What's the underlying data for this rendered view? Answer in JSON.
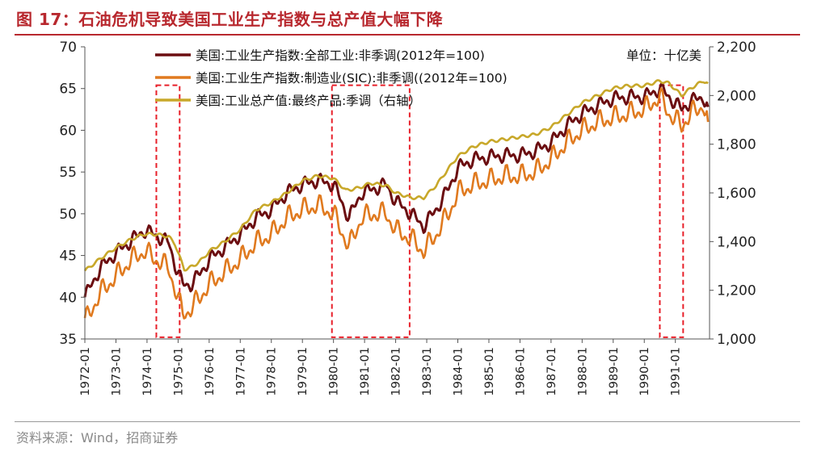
{
  "figure": {
    "title": "图 17：石油危机导致美国工业生产指数与总产值大幅下降",
    "source": "资料来源：Wind，招商证券",
    "title_color": "#b8282e"
  },
  "chart_data": {
    "type": "line",
    "x_tick_labels": [
      "1972-01",
      "1973-01",
      "1974-01",
      "1975-01",
      "1976-01",
      "1977-01",
      "1978-01",
      "1979-01",
      "1980-01",
      "1981-01",
      "1982-01",
      "1983-01",
      "1984-01",
      "1985-01",
      "1986-01",
      "1987-01",
      "1988-01",
      "1989-01",
      "1990-01",
      "1991-01"
    ],
    "x_range": [
      1972.0,
      1992.1
    ],
    "y_left": {
      "ylim": [
        35,
        70
      ],
      "ticks": [
        "35",
        "40",
        "45",
        "50",
        "55",
        "60",
        "65",
        "70"
      ]
    },
    "y_right": {
      "ylim": [
        1000,
        2200
      ],
      "ticks": [
        "1,000",
        "1,200",
        "1,400",
        "1,600",
        "1,800",
        "2,000",
        "2,200"
      ],
      "label": "右轴"
    },
    "grid": false,
    "legend_position": "top-left",
    "unit_note": "单位：十亿美",
    "recession_shading": [
      {
        "start": 1974.3,
        "end": 1975.05
      },
      {
        "start": 1979.95,
        "end": 1982.45
      },
      {
        "start": 1990.5,
        "end": 1991.25
      }
    ],
    "series": [
      {
        "name": "美国:工业生产指数:全部工业:非季调(2012年=100)",
        "axis": "left",
        "color": "#6b0d10",
        "points": [
          [
            1972.0,
            40.0
          ],
          [
            1972.5,
            43.5
          ],
          [
            1973.0,
            45.3
          ],
          [
            1973.5,
            46.8
          ],
          [
            1973.9,
            48.0
          ],
          [
            1974.3,
            47.4
          ],
          [
            1974.7,
            46.5
          ],
          [
            1974.9,
            44.0
          ],
          [
            1975.15,
            41.5
          ],
          [
            1975.4,
            41.5
          ],
          [
            1975.7,
            42.8
          ],
          [
            1976.0,
            44.5
          ],
          [
            1976.5,
            46.0
          ],
          [
            1977.0,
            47.5
          ],
          [
            1977.5,
            49.5
          ],
          [
            1978.0,
            50.5
          ],
          [
            1978.5,
            52.5
          ],
          [
            1979.0,
            53.5
          ],
          [
            1979.5,
            54.0
          ],
          [
            1980.0,
            53.5
          ],
          [
            1980.5,
            49.5
          ],
          [
            1980.9,
            52.5
          ],
          [
            1981.3,
            53.0
          ],
          [
            1981.7,
            53.5
          ],
          [
            1982.0,
            51.5
          ],
          [
            1982.5,
            50.0
          ],
          [
            1982.9,
            48.5
          ],
          [
            1983.3,
            50.5
          ],
          [
            1983.7,
            53.0
          ],
          [
            1984.0,
            55.5
          ],
          [
            1984.5,
            56.5
          ],
          [
            1985.0,
            56.8
          ],
          [
            1985.5,
            57.0
          ],
          [
            1986.0,
            57.0
          ],
          [
            1986.5,
            57.5
          ],
          [
            1987.0,
            58.5
          ],
          [
            1987.5,
            60.5
          ],
          [
            1988.0,
            62.0
          ],
          [
            1988.5,
            63.0
          ],
          [
            1989.0,
            63.8
          ],
          [
            1989.5,
            64.0
          ],
          [
            1990.0,
            64.0
          ],
          [
            1990.5,
            65.0
          ],
          [
            1990.8,
            64.0
          ],
          [
            1991.2,
            62.5
          ],
          [
            1991.5,
            63.5
          ],
          [
            1991.9,
            64.0
          ],
          [
            1992.05,
            62.8
          ]
        ]
      },
      {
        "name": "美国:工业生产指数:制造业(SIC):非季调((2012年=100)",
        "axis": "left",
        "color": "#e07a1f",
        "points": [
          [
            1972.0,
            37.0
          ],
          [
            1972.5,
            40.5
          ],
          [
            1973.0,
            42.5
          ],
          [
            1973.5,
            44.5
          ],
          [
            1973.9,
            45.5
          ],
          [
            1974.3,
            44.5
          ],
          [
            1974.7,
            43.5
          ],
          [
            1974.9,
            41.0
          ],
          [
            1975.15,
            38.0
          ],
          [
            1975.4,
            38.5
          ],
          [
            1975.7,
            40.0
          ],
          [
            1976.0,
            41.5
          ],
          [
            1976.5,
            43.0
          ],
          [
            1977.0,
            44.5
          ],
          [
            1977.5,
            46.5
          ],
          [
            1978.0,
            47.5
          ],
          [
            1978.5,
            49.5
          ],
          [
            1979.0,
            50.5
          ],
          [
            1979.5,
            51.0
          ],
          [
            1980.0,
            50.0
          ],
          [
            1980.5,
            46.0
          ],
          [
            1980.9,
            49.5
          ],
          [
            1981.3,
            50.0
          ],
          [
            1981.7,
            50.0
          ],
          [
            1982.0,
            48.0
          ],
          [
            1982.5,
            47.0
          ],
          [
            1982.9,
            45.5
          ],
          [
            1983.3,
            47.5
          ],
          [
            1983.7,
            50.0
          ],
          [
            1984.0,
            52.5
          ],
          [
            1984.5,
            53.5
          ],
          [
            1985.0,
            54.0
          ],
          [
            1985.5,
            54.5
          ],
          [
            1986.0,
            54.5
          ],
          [
            1986.5,
            55.0
          ],
          [
            1987.0,
            56.5
          ],
          [
            1987.5,
            58.5
          ],
          [
            1988.0,
            60.0
          ],
          [
            1988.5,
            61.0
          ],
          [
            1989.0,
            61.5
          ],
          [
            1989.5,
            62.0
          ],
          [
            1990.0,
            62.5
          ],
          [
            1990.5,
            64.0
          ],
          [
            1990.8,
            62.0
          ],
          [
            1991.2,
            60.5
          ],
          [
            1991.5,
            62.0
          ],
          [
            1991.9,
            63.0
          ],
          [
            1992.05,
            61.0
          ]
        ]
      },
      {
        "name": "美国:工业总产值:最终产品:季调（右轴）",
        "axis": "right",
        "color": "#c8a82a",
        "points": [
          [
            1972.0,
            1280
          ],
          [
            1972.5,
            1330
          ],
          [
            1973.0,
            1375
          ],
          [
            1973.5,
            1410
          ],
          [
            1973.9,
            1430
          ],
          [
            1974.3,
            1430
          ],
          [
            1974.7,
            1420
          ],
          [
            1974.9,
            1390
          ],
          [
            1975.2,
            1285
          ],
          [
            1975.5,
            1300
          ],
          [
            1975.8,
            1330
          ],
          [
            1976.0,
            1360
          ],
          [
            1976.5,
            1400
          ],
          [
            1977.0,
            1450
          ],
          [
            1977.5,
            1530
          ],
          [
            1978.0,
            1560
          ],
          [
            1978.5,
            1600
          ],
          [
            1979.0,
            1650
          ],
          [
            1979.5,
            1670
          ],
          [
            1980.0,
            1660
          ],
          [
            1980.4,
            1610
          ],
          [
            1980.8,
            1620
          ],
          [
            1981.2,
            1640
          ],
          [
            1981.7,
            1630
          ],
          [
            1982.0,
            1600
          ],
          [
            1982.5,
            1580
          ],
          [
            1982.9,
            1580
          ],
          [
            1983.3,
            1630
          ],
          [
            1983.7,
            1700
          ],
          [
            1984.0,
            1750
          ],
          [
            1984.5,
            1790
          ],
          [
            1985.0,
            1810
          ],
          [
            1985.5,
            1820
          ],
          [
            1986.0,
            1830
          ],
          [
            1986.5,
            1840
          ],
          [
            1987.0,
            1870
          ],
          [
            1987.5,
            1920
          ],
          [
            1988.0,
            1970
          ],
          [
            1988.5,
            2000
          ],
          [
            1989.0,
            2030
          ],
          [
            1989.5,
            2040
          ],
          [
            1990.0,
            2040
          ],
          [
            1990.5,
            2060
          ],
          [
            1990.8,
            2050
          ],
          [
            1991.2,
            2000
          ],
          [
            1991.5,
            2030
          ],
          [
            1991.9,
            2060
          ],
          [
            1992.05,
            2050
          ]
        ]
      }
    ]
  }
}
